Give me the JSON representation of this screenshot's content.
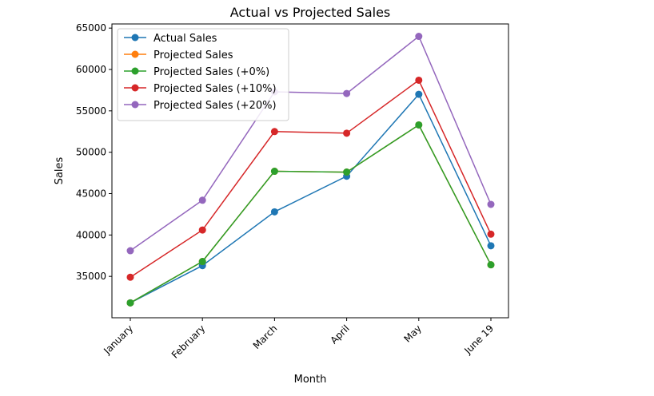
{
  "chart_data": {
    "type": "line",
    "title": "Actual vs Projected Sales",
    "xlabel": "Month",
    "ylabel": "Sales",
    "categories": [
      "January",
      "February",
      "March",
      "April",
      "May",
      "June 19"
    ],
    "ylim": [
      30000,
      65500
    ],
    "yticks": [
      35000,
      40000,
      45000,
      50000,
      55000,
      60000,
      65000
    ],
    "grid": false,
    "legend_position": "top-left",
    "series": [
      {
        "name": "Actual Sales",
        "color": "#1f77b4",
        "values": [
          31800,
          36300,
          42800,
          47100,
          57000,
          38700
        ]
      },
      {
        "name": "Projected Sales",
        "color": "#ff7f0e",
        "values": [
          31800,
          36800,
          47700,
          47600,
          53300,
          36400
        ]
      },
      {
        "name": "Projected Sales (+0%)",
        "color": "#2ca02c",
        "values": [
          31800,
          36800,
          47700,
          47600,
          53300,
          36400
        ]
      },
      {
        "name": "Projected Sales (+10%)",
        "color": "#d62728",
        "values": [
          34900,
          40600,
          52500,
          52300,
          58700,
          40100
        ]
      },
      {
        "name": "Projected Sales (+20%)",
        "color": "#9467bd",
        "values": [
          38100,
          44200,
          57300,
          57100,
          64000,
          43700
        ]
      }
    ]
  }
}
